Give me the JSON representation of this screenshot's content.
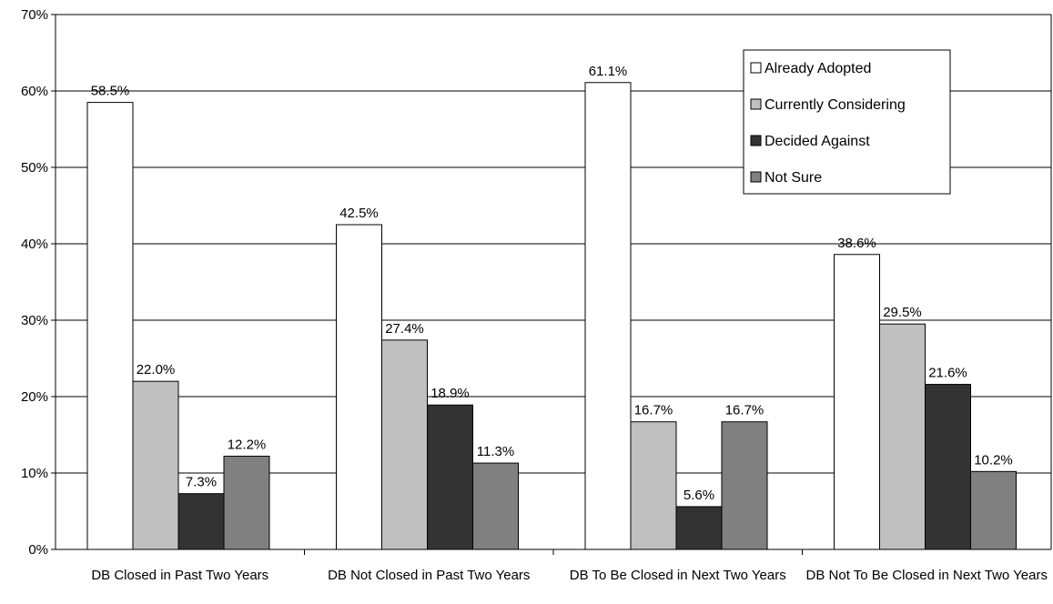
{
  "chart_data": {
    "type": "bar",
    "categories": [
      "DB Closed in Past Two Years",
      "DB Not Closed in Past Two Years",
      "DB To Be Closed in Next Two Years",
      "DB Not To Be Closed in Next Two Years"
    ],
    "series": [
      {
        "name": "Already Adopted",
        "color": "#ffffff",
        "values": [
          58.5,
          42.5,
          61.1,
          38.6
        ],
        "labels": [
          "58.5%",
          "42.5%",
          "61.1%",
          "38.6%"
        ]
      },
      {
        "name": "Currently Considering",
        "color": "#c0c0c0",
        "values": [
          22.0,
          27.4,
          16.7,
          29.5
        ],
        "labels": [
          "22.0%",
          "27.4%",
          "16.7%",
          "29.5%"
        ]
      },
      {
        "name": "Decided Against",
        "color": "#333333",
        "values": [
          7.3,
          18.9,
          5.6,
          21.6
        ],
        "labels": [
          "7.3%",
          "18.9%",
          "5.6%",
          "21.6%"
        ]
      },
      {
        "name": "Not Sure",
        "color": "#808080",
        "values": [
          12.2,
          11.3,
          16.7,
          10.2
        ],
        "labels": [
          "12.2%",
          "11.3%",
          "16.7%",
          "10.2%"
        ]
      }
    ],
    "ylim": [
      0,
      70
    ],
    "yticks": [
      0,
      10,
      20,
      30,
      40,
      50,
      60,
      70
    ],
    "ytick_labels": [
      "0%",
      "10%",
      "20%",
      "30%",
      "40%",
      "50%",
      "60%",
      "70%"
    ],
    "grid": true,
    "legend_position": "top-right"
  }
}
